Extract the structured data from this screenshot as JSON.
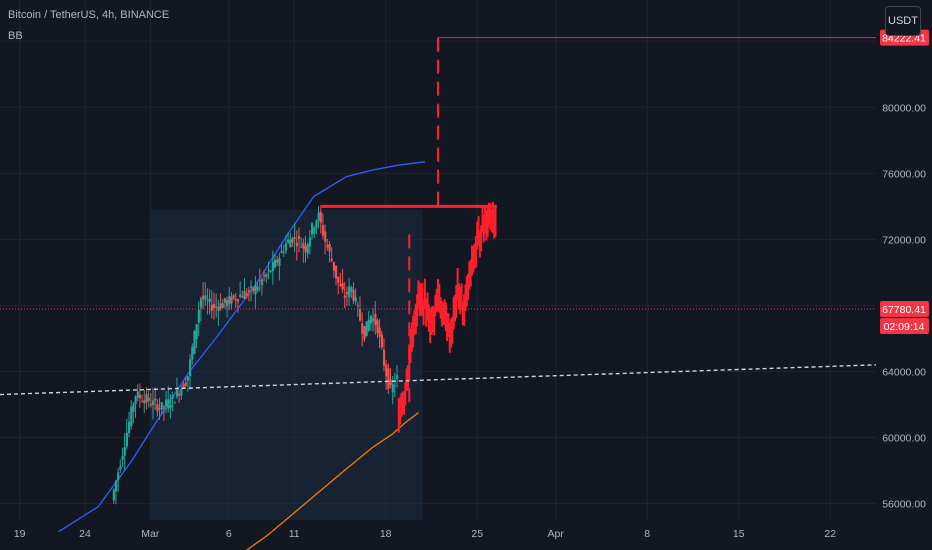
{
  "header": {
    "symbol_title": "Bitcoin / TetherUS, 4h, BINANCE",
    "indicator": "BB",
    "currency_button": "USDT"
  },
  "colors": {
    "background": "#131722",
    "grid": "#1f2430",
    "up_candle": "#26a69a",
    "down_candle": "#ef5350",
    "projection": "#ff1f2d",
    "bb_upper": "#2962ff",
    "bb_lower": "#f57c00",
    "trendline": "#d1d4dc",
    "price_tag": "#f23645",
    "shade": "#1c2b42"
  },
  "chart_data": {
    "type": "candlestick",
    "symbol": "Bitcoin / TetherUS",
    "interval": "4h",
    "exchange": "BINANCE",
    "y_axis": {
      "ticks": [
        56000,
        60000,
        64000,
        68000,
        72000,
        76000,
        80000
      ],
      "tick_labels": [
        "56000.00",
        "60000.00",
        "64000.00",
        "68000.00",
        "72000.00",
        "76000.00",
        "80000.00"
      ],
      "range": [
        55000,
        86500
      ]
    },
    "x_axis": {
      "tick_labels": [
        "19",
        "24",
        "Mar",
        "6",
        "11",
        "18",
        "25",
        "Apr",
        "8",
        "15",
        "22"
      ],
      "tick_days": [
        -10,
        -5,
        0,
        6,
        11,
        18,
        25,
        31,
        38,
        45,
        52
      ],
      "range": [
        -11.5,
        55.5
      ]
    },
    "price_series_days": [
      -2.8,
      -2.0,
      -1.5,
      -1.0,
      0.0,
      1.0,
      2.0,
      3.0,
      3.6,
      4.0,
      5.0,
      6.0,
      7.0,
      8.0,
      9.0,
      9.8,
      10.5,
      11.0,
      11.5,
      12.0,
      12.5,
      13.0,
      13.5,
      14.0,
      14.5,
      15.0,
      15.5,
      16.0,
      16.5,
      17.0,
      17.5,
      18.0,
      18.5,
      19.0,
      19.6,
      20.0
    ],
    "price_series_values": [
      56200,
      59000,
      60800,
      62600,
      62200,
      61800,
      62400,
      63600,
      66500,
      68500,
      67900,
      68200,
      68600,
      68900,
      69800,
      70600,
      71700,
      72100,
      71900,
      71400,
      72600,
      73500,
      72000,
      70800,
      69400,
      68500,
      69100,
      67800,
      66200,
      67400,
      66800,
      64600,
      62800,
      63500,
      65200,
      66800
    ],
    "projection_days": [
      19.0,
      19.5,
      20.0,
      20.5,
      21.0,
      21.5,
      22.0,
      22.5,
      23.0,
      23.5,
      24.0,
      24.5,
      25.0,
      25.5,
      26.0,
      26.5
    ],
    "projection_values": [
      61800,
      62600,
      66200,
      68400,
      68100,
      66800,
      68600,
      67200,
      66200,
      68900,
      67600,
      70100,
      71800,
      72900,
      73600,
      73100
    ],
    "bb_upper_days": [
      -7.0,
      -4.0,
      -1.5,
      0.5,
      3.0,
      5.0,
      8.0,
      10.5,
      12.5,
      15.0,
      17.0,
      19.0,
      21.0
    ],
    "bb_upper_values": [
      54300,
      55800,
      58500,
      61000,
      64000,
      66000,
      69200,
      72300,
      74600,
      75800,
      76200,
      76500,
      76700
    ],
    "bb_lower_days": [
      6.0,
      9.0,
      12.0,
      15.0,
      17.0,
      18.5,
      19.5,
      20.5
    ],
    "bb_lower_values": [
      52400,
      54100,
      56100,
      58100,
      59400,
      60200,
      60900,
      61500
    ],
    "trendline": {
      "start_day": -11.5,
      "start_value": 62600,
      "end_day": 55.5,
      "end_value": 64400
    },
    "resistance_line": {
      "start_day": 13.0,
      "end_day": 26.5,
      "value": 74000
    },
    "target_line": {
      "start_day": 22.0,
      "end_day": 55.5,
      "value": 84222.41
    },
    "vertical_dashes": [
      {
        "day": 22.0,
        "from": 74000,
        "to": 84222.41
      },
      {
        "day": 19.8,
        "from": 62000,
        "to": 72300
      }
    ],
    "shaded_zone": {
      "start_day": 0.0,
      "end_day": 20.8
    },
    "current_price": 67780.41,
    "price_labels": {
      "target": "84222.41",
      "current": "67780.41",
      "countdown": "02:09:14"
    }
  }
}
